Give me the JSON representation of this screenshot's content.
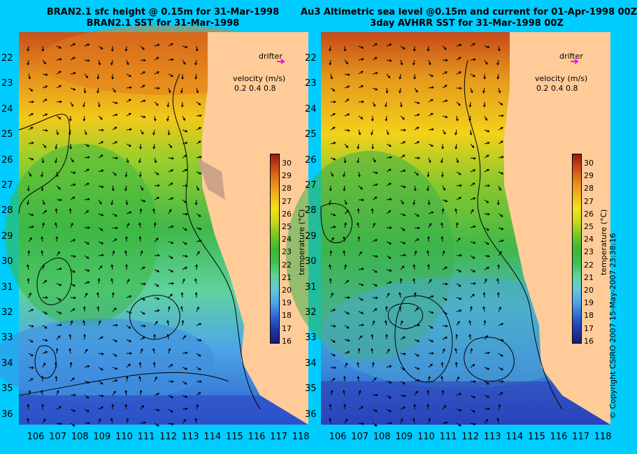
{
  "left": {
    "title_line1": "BRAN2.1 sfc height @ 0.15m for 31-Mar-1998",
    "title_line2": "BRAN2.1 SST for 31-Mar-1998"
  },
  "right": {
    "title_line1": "Au3 Altimetric sea level  @0.15m and current for 01-Apr-1998 00Z",
    "title_line2": "3day AVHRR SST for 31-Mar-1998 00Z"
  },
  "drifter_label": "drifter",
  "velocity_label": "velocity (m/s)",
  "velocity_scale": "0.2 0.4 0.8",
  "latitude_ticks": [
    "22",
    "23",
    "24",
    "25",
    "26",
    "27",
    "28",
    "29",
    "30",
    "31",
    "32",
    "33",
    "34",
    "35",
    "36"
  ],
  "longitude_ticks": [
    "106",
    "107",
    "108",
    "109",
    "110",
    "111",
    "112",
    "113",
    "114",
    "115",
    "116",
    "117",
    "118"
  ],
  "colorbar": {
    "label": "temperature (°C)",
    "ticks": [
      "30",
      "29",
      "28",
      "27",
      "26",
      "25",
      "24",
      "23",
      "22",
      "21",
      "20",
      "19",
      "18",
      "17",
      "16"
    ],
    "colors": [
      "#1a1a6e",
      "#1e3aa8",
      "#2d6ad6",
      "#4fa3e8",
      "#63c9d8",
      "#5fd29a",
      "#3fbf4f",
      "#3cb833",
      "#7cc620",
      "#c8d81a",
      "#f2e21a",
      "#f2b21a",
      "#e8821c",
      "#cc4a18",
      "#9a1a10"
    ]
  },
  "copyright": "© Copyright CSIRO 2007   15-May-2007 23:38:16"
}
